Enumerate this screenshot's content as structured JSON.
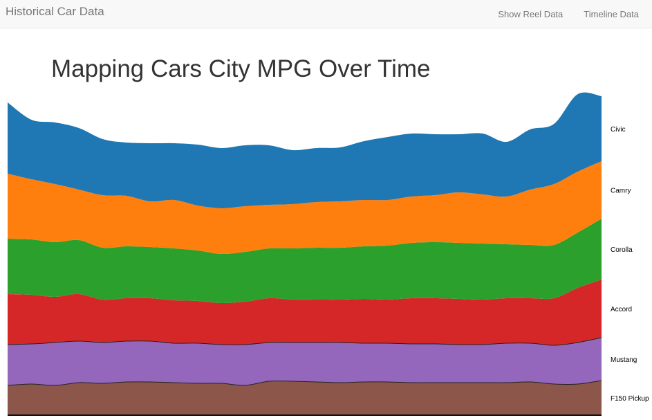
{
  "navbar": {
    "brand": "Historical Car Data",
    "links": [
      {
        "label": "Show Reel Data"
      },
      {
        "label": "Timeline Data"
      }
    ]
  },
  "page": {
    "title": "Mapping Cars City MPG Over Time"
  },
  "chart_data": {
    "type": "area",
    "stacked": true,
    "curve": "smooth",
    "title": "Mapping Cars City MPG Over Time",
    "xlabel": "",
    "ylabel": "",
    "x_axis_visible": false,
    "y_axis_visible": false,
    "grid": false,
    "legend": "right",
    "x": [
      0,
      1,
      2,
      3,
      4,
      5,
      6,
      7,
      8,
      9,
      10,
      11,
      12,
      13,
      14,
      15,
      16,
      17,
      18,
      19,
      20,
      21,
      22,
      23,
      24,
      25
    ],
    "ylim": [
      0,
      45
    ],
    "series": [
      {
        "name": "F150 Pickup",
        "color": "#8c564b",
        "values": [
          4.3,
          4.5,
          4.3,
          4.7,
          4.6,
          4.8,
          4.8,
          4.7,
          4.6,
          4.6,
          4.3,
          4.9,
          4.9,
          4.8,
          4.7,
          4.8,
          4.8,
          4.7,
          4.7,
          4.7,
          4.7,
          4.7,
          4.8,
          4.5,
          4.5,
          5.0
        ]
      },
      {
        "name": "Mustang",
        "color": "#9467bd",
        "values": [
          5.9,
          5.8,
          6.2,
          6.0,
          5.9,
          5.9,
          5.9,
          5.7,
          5.8,
          5.6,
          5.9,
          5.6,
          5.6,
          5.7,
          5.8,
          5.6,
          5.6,
          5.6,
          5.6,
          5.5,
          5.5,
          5.7,
          5.6,
          5.6,
          6.0,
          6.2
        ]
      },
      {
        "name": "Accord",
        "color": "#d62728",
        "values": [
          7.3,
          7.1,
          6.6,
          6.8,
          6.2,
          6.2,
          6.2,
          6.2,
          6.1,
          6.0,
          6.2,
          6.4,
          6.2,
          6.2,
          6.2,
          6.4,
          6.3,
          6.6,
          6.6,
          6.6,
          6.5,
          6.5,
          6.5,
          6.8,
          7.9,
          8.4
        ]
      },
      {
        "name": "Corolla",
        "color": "#2ca02c",
        "values": [
          8.0,
          8.0,
          7.9,
          7.8,
          7.5,
          7.5,
          7.4,
          7.5,
          7.3,
          7.1,
          7.2,
          7.2,
          7.4,
          7.5,
          7.5,
          7.6,
          7.8,
          8.0,
          8.1,
          8.1,
          8.1,
          7.8,
          7.7,
          7.7,
          8.0,
          8.8
        ]
      },
      {
        "name": "Camry",
        "color": "#ff7f0e",
        "values": [
          9.4,
          8.7,
          8.4,
          7.3,
          7.6,
          7.3,
          6.6,
          7.0,
          6.5,
          6.6,
          6.6,
          6.3,
          6.4,
          6.6,
          6.7,
          6.7,
          6.6,
          6.7,
          6.8,
          7.3,
          7.1,
          6.9,
          8.0,
          8.8,
          8.8,
          8.3
        ]
      },
      {
        "name": "Civic",
        "color": "#1f77b4",
        "values": [
          10.3,
          8.6,
          8.9,
          8.9,
          8.1,
          7.7,
          8.4,
          8.2,
          8.8,
          8.7,
          8.8,
          8.6,
          7.8,
          7.8,
          7.8,
          8.5,
          9.1,
          9.1,
          8.8,
          8.4,
          8.8,
          7.9,
          8.7,
          8.7,
          11.2,
          9.4
        ]
      }
    ]
  }
}
